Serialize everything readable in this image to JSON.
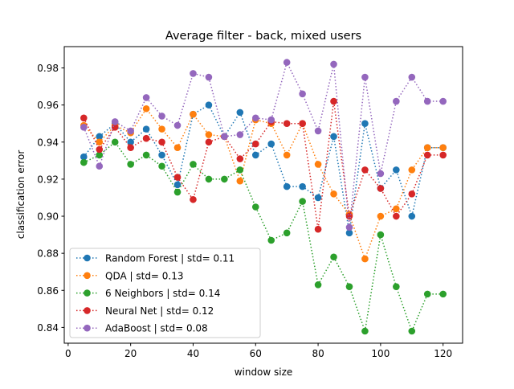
{
  "chart_data": {
    "type": "line",
    "title": "Average filter - back, mixed users",
    "xlabel": "window size",
    "ylabel": "classification error",
    "xlim": [
      -1.25,
      126.25
    ],
    "ylim": [
      0.8315,
      0.9915
    ],
    "xticks": [
      0,
      20,
      40,
      60,
      80,
      100,
      120
    ],
    "yticks": [
      0.84,
      0.86,
      0.88,
      0.9,
      0.92,
      0.94,
      0.96,
      0.98
    ],
    "xtick_labels": [
      "0",
      "20",
      "40",
      "60",
      "80",
      "100",
      "120"
    ],
    "ytick_labels": [
      "0.84",
      "0.86",
      "0.88",
      "0.90",
      "0.92",
      "0.94",
      "0.96",
      "0.98"
    ],
    "grid": false,
    "legend_position": "lower-left",
    "line_style": "dotted",
    "x": [
      5,
      10,
      15,
      20,
      25,
      30,
      35,
      40,
      45,
      50,
      55,
      60,
      65,
      70,
      75,
      80,
      85,
      90,
      95,
      100,
      105,
      110,
      115,
      120
    ],
    "series": [
      {
        "name": "Random Forest | std= 0.11",
        "color": "#1f77b4",
        "values": [
          0.932,
          0.943,
          0.95,
          0.94,
          0.947,
          0.933,
          0.917,
          0.955,
          0.96,
          0.943,
          0.956,
          0.933,
          0.939,
          0.916,
          0.916,
          0.91,
          0.943,
          0.891,
          0.95,
          0.915,
          0.925,
          0.9,
          0.937,
          0.937
        ]
      },
      {
        "name": "QDA | std= 0.13",
        "color": "#ff7f0e",
        "values": [
          0.949,
          0.94,
          0.949,
          0.945,
          0.958,
          0.947,
          0.937,
          0.955,
          0.944,
          0.943,
          0.919,
          0.952,
          0.95,
          0.933,
          0.95,
          0.928,
          0.912,
          0.901,
          0.877,
          0.9,
          0.904,
          0.925,
          0.937,
          0.937
        ]
      },
      {
        "name": "6 Neighbors | std= 0.14",
        "color": "#2ca02c",
        "values": [
          0.929,
          0.933,
          0.94,
          0.928,
          0.933,
          0.927,
          0.913,
          0.928,
          0.92,
          0.92,
          0.925,
          0.905,
          0.887,
          0.891,
          0.908,
          0.863,
          0.878,
          0.862,
          0.838,
          0.89,
          0.862,
          0.838,
          0.858,
          0.858
        ]
      },
      {
        "name": "Neural Net | std= 0.12",
        "color": "#d62728",
        "values": [
          0.953,
          0.936,
          0.948,
          0.937,
          0.942,
          0.94,
          0.921,
          0.909,
          0.94,
          0.943,
          0.931,
          0.939,
          0.951,
          0.95,
          0.95,
          0.893,
          0.962,
          0.9,
          0.925,
          0.915,
          0.9,
          0.912,
          0.933,
          0.933
        ]
      },
      {
        "name": "AdaBoost | std= 0.08",
        "color": "#9467bd",
        "values": [
          0.948,
          0.927,
          0.951,
          0.946,
          0.964,
          0.954,
          0.949,
          0.977,
          0.975,
          0.943,
          0.944,
          0.953,
          0.952,
          0.983,
          0.966,
          0.946,
          0.982,
          0.894,
          0.975,
          0.923,
          0.962,
          0.975,
          0.962,
          0.962
        ]
      }
    ]
  }
}
